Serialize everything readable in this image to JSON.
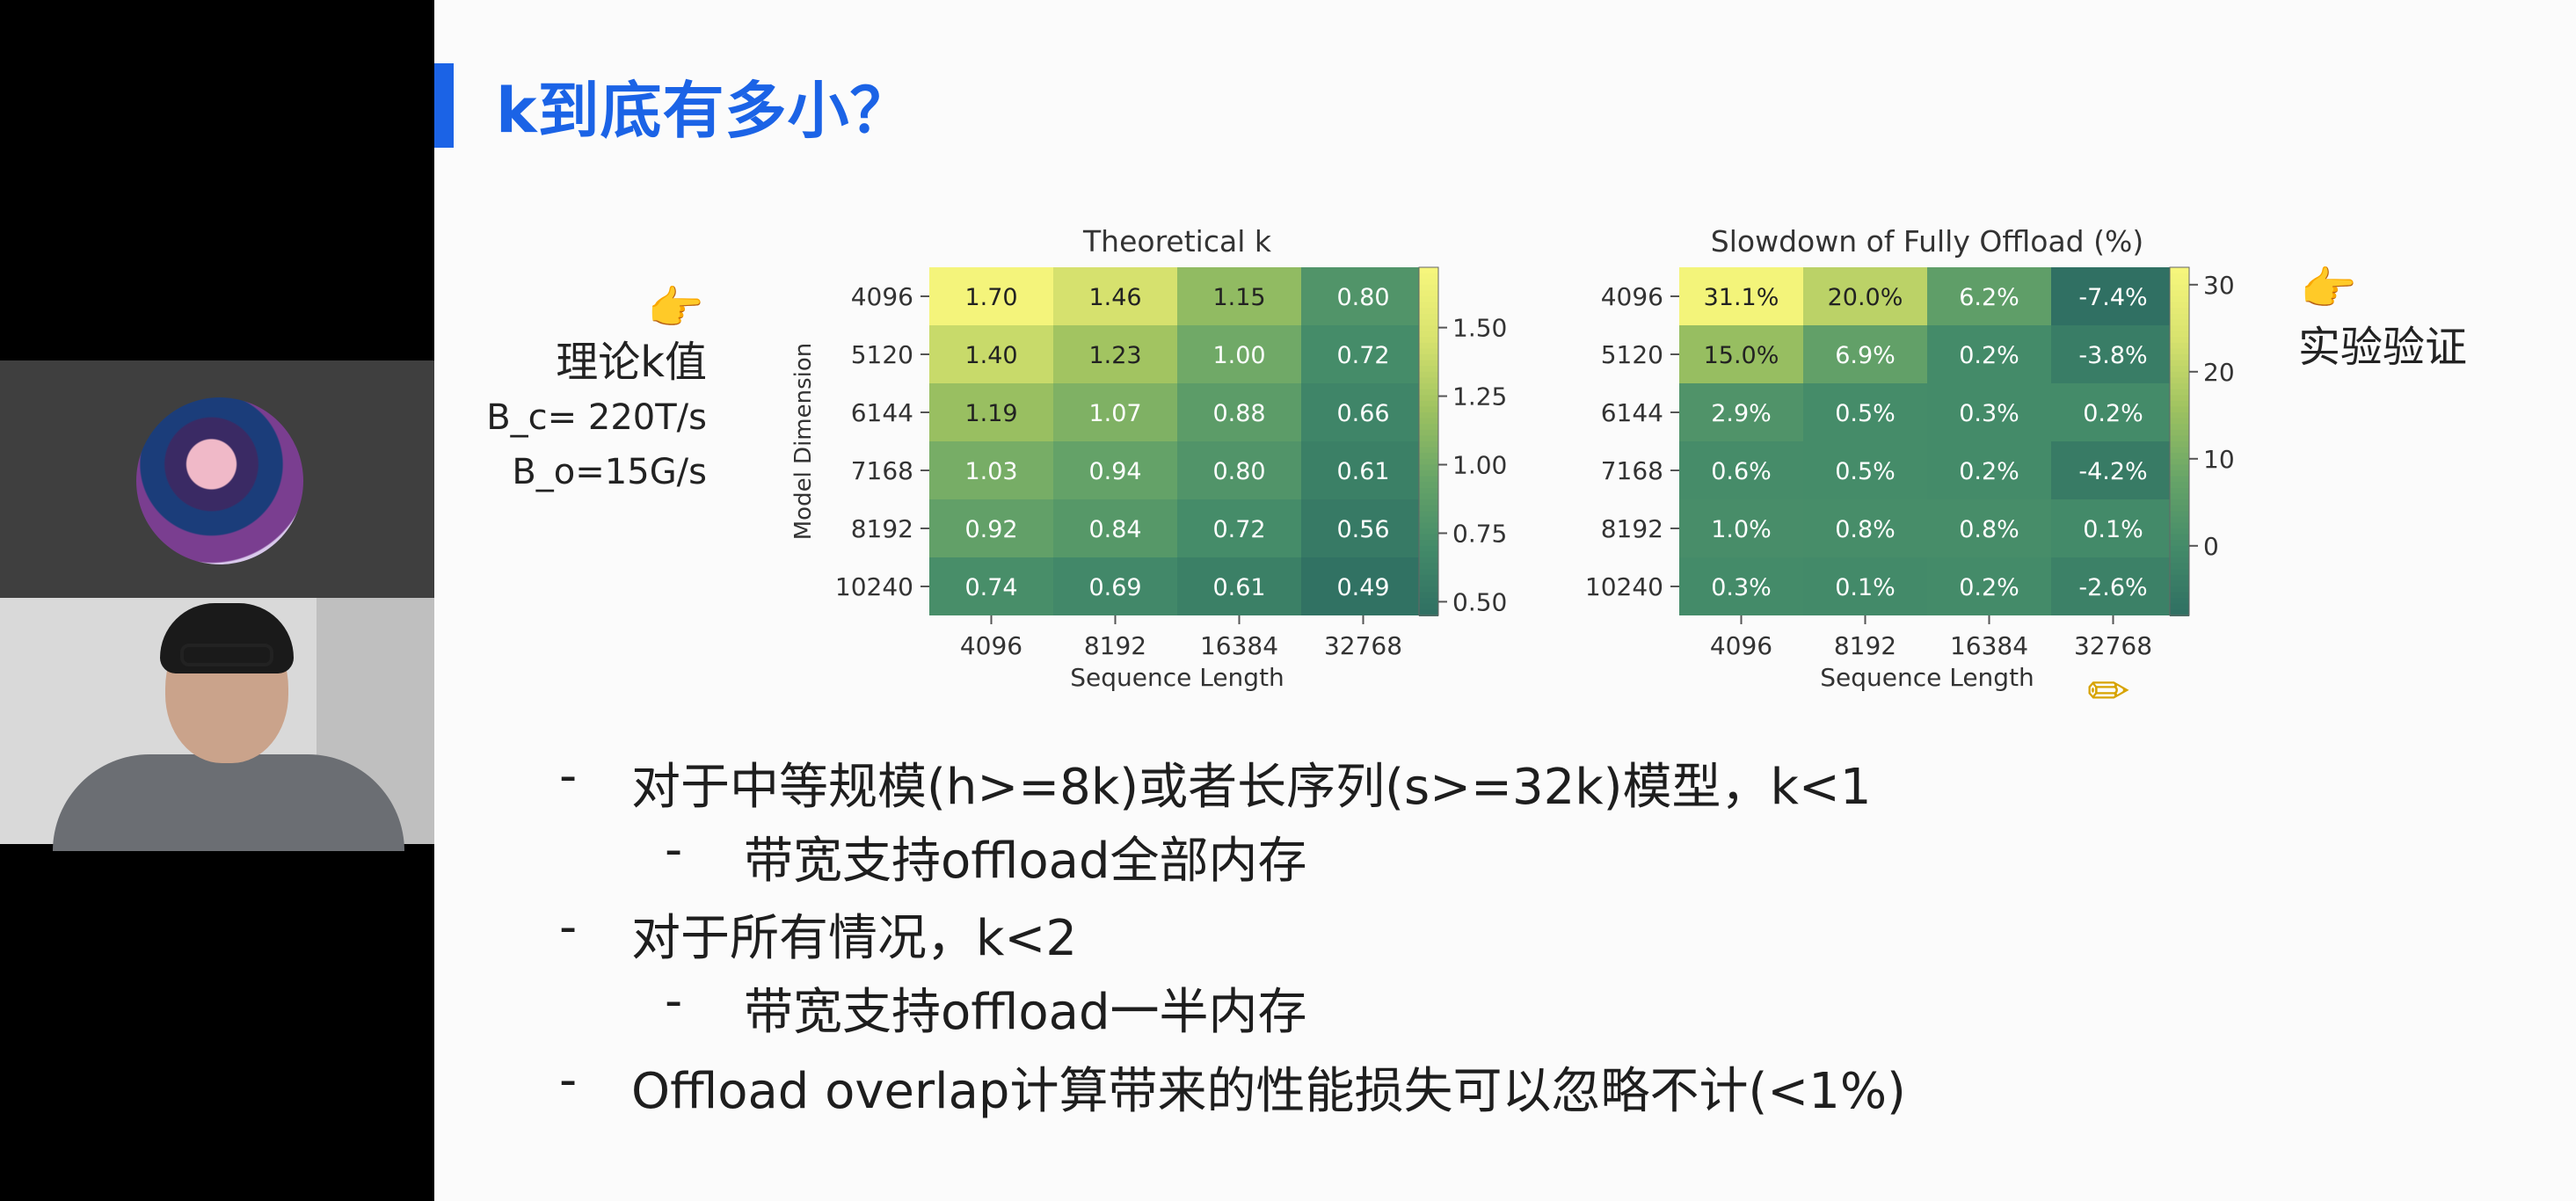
{
  "slide": {
    "title": "k到底有多小？",
    "left_note": {
      "label": "理论k值",
      "bc": "B_c= 220T/s",
      "bo": "B_o=15G/s"
    },
    "right_note": "实验验证",
    "bullets": [
      {
        "level": 1,
        "text": "对于中等规模(h>=8k)或者长序列(s>=32k)模型，k<1"
      },
      {
        "level": 2,
        "text": "带宽支持offload全部内存"
      },
      {
        "level": 1,
        "text": "对于所有情况，k<2"
      },
      {
        "level": 2,
        "text": "带宽支持offload一半内存"
      },
      {
        "level": 1,
        "text": "Offload overlap计算带来的性能损失可以忽略不计(<1%)"
      }
    ]
  },
  "icons": {
    "hand_left": "pointing-hand-icon",
    "hand_right": "pointing-hand-icon",
    "pencil": "pencil-icon"
  },
  "chart_data": [
    {
      "type": "heatmap",
      "title": "Theoretical k",
      "xlabel": "Sequence Length",
      "ylabel": "Model Dimension",
      "x": [
        "4096",
        "8192",
        "16384",
        "32768"
      ],
      "y": [
        "4096",
        "5120",
        "6144",
        "7168",
        "8192",
        "10240"
      ],
      "values": [
        [
          1.7,
          1.46,
          1.15,
          0.8
        ],
        [
          1.4,
          1.23,
          1.0,
          0.72
        ],
        [
          1.19,
          1.07,
          0.88,
          0.66
        ],
        [
          1.03,
          0.94,
          0.8,
          0.61
        ],
        [
          0.92,
          0.84,
          0.72,
          0.56
        ],
        [
          0.74,
          0.69,
          0.61,
          0.49
        ]
      ],
      "labels": [
        [
          "1.70",
          "1.46",
          "1.15",
          "0.80"
        ],
        [
          "1.40",
          "1.23",
          "1.00",
          "0.72"
        ],
        [
          "1.19",
          "1.07",
          "0.88",
          "0.66"
        ],
        [
          "1.03",
          "0.94",
          "0.80",
          "0.61"
        ],
        [
          "0.92",
          "0.84",
          "0.72",
          "0.56"
        ],
        [
          "0.74",
          "0.69",
          "0.61",
          "0.49"
        ]
      ],
      "colorbar": {
        "min": 0.45,
        "max": 1.72,
        "ticks": [
          "1.50",
          "1.25",
          "1.00",
          "0.75",
          "0.50"
        ],
        "tick_values": [
          1.5,
          1.25,
          1.0,
          0.75,
          0.5
        ]
      },
      "colormap": [
        "#2e6e62",
        "#438a69",
        "#67a468",
        "#9ec260",
        "#d7e26e",
        "#f6f67c"
      ]
    },
    {
      "type": "heatmap",
      "title": "Slowdown of Fully Offload (%)",
      "xlabel": "Sequence Length",
      "ylabel": "",
      "x": [
        "4096",
        "8192",
        "16384",
        "32768"
      ],
      "y": [
        "4096",
        "5120",
        "6144",
        "7168",
        "8192",
        "10240"
      ],
      "values": [
        [
          31.1,
          20.0,
          6.2,
          -7.4
        ],
        [
          15.0,
          6.9,
          0.2,
          -3.8
        ],
        [
          2.9,
          0.5,
          0.3,
          0.2
        ],
        [
          0.6,
          0.5,
          0.2,
          -4.2
        ],
        [
          1.0,
          0.8,
          0.8,
          0.1
        ],
        [
          0.3,
          0.1,
          0.2,
          -2.6
        ]
      ],
      "labels": [
        [
          "31.1%",
          "20.0%",
          "6.2%",
          "-7.4%"
        ],
        [
          "15.0%",
          "6.9%",
          "0.2%",
          "-3.8%"
        ],
        [
          "2.9%",
          "0.5%",
          "0.3%",
          "0.2%"
        ],
        [
          "0.6%",
          "0.5%",
          "0.2%",
          "-4.2%"
        ],
        [
          "1.0%",
          "0.8%",
          "0.8%",
          "0.1%"
        ],
        [
          "0.3%",
          "0.1%",
          "0.2%",
          "-2.6%"
        ]
      ],
      "colorbar": {
        "min": -8,
        "max": 32,
        "ticks": [
          "30",
          "20",
          "10",
          "0"
        ],
        "tick_values": [
          30,
          20,
          10,
          0
        ]
      },
      "colormap": [
        "#2e6e62",
        "#438a69",
        "#67a468",
        "#9ec260",
        "#d7e26e",
        "#f6f67c"
      ]
    }
  ]
}
